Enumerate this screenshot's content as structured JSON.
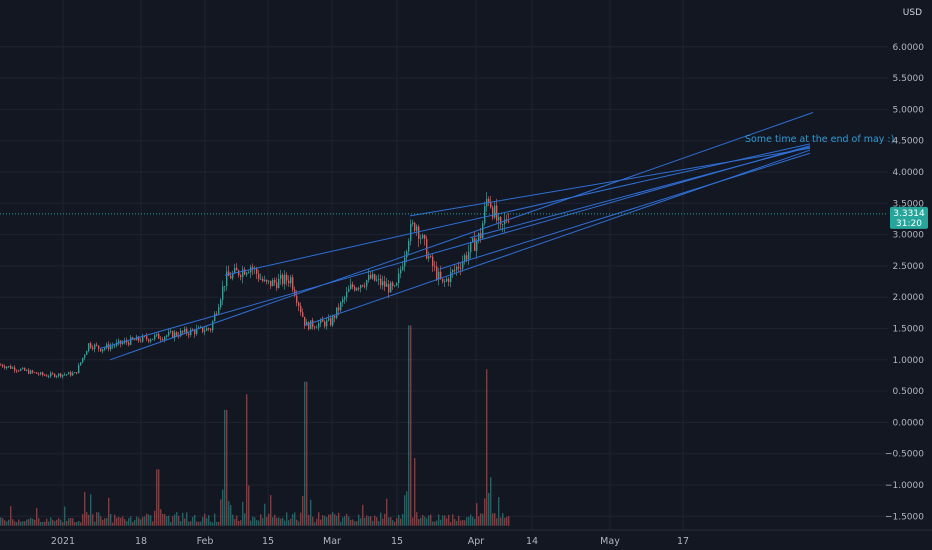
{
  "currency": "USD",
  "annotation": "Some time at the end of may :)",
  "price_label": {
    "value": "3.3314",
    "countdown": "31:20"
  },
  "colors": {
    "background": "#131722",
    "grid": "#1f2330",
    "up": "#26a69a",
    "down": "#ef5350",
    "trendline": "#2f6fd6",
    "price_badge": "#26a69a"
  },
  "chart_data": {
    "type": "candlestick",
    "y_axis": {
      "ticks": [
        "6.0000",
        "5.5000",
        "5.0000",
        "4.5000",
        "4.0000",
        "3.5000",
        "3.0000",
        "2.5000",
        "2.0000",
        "1.5000",
        "1.0000",
        "0.5000",
        "0.0000",
        "−0.5000",
        "−1.0000",
        "−1.5000"
      ],
      "range": [
        -1.65,
        6.5
      ]
    },
    "x_axis": {
      "ticks": [
        "2021",
        "18",
        "Feb",
        "15",
        "Mar",
        "15",
        "Apr",
        "14",
        "May",
        "17"
      ]
    },
    "last_price": 3.3314,
    "price_path": [
      [
        0,
        0.92
      ],
      [
        30,
        0.8
      ],
      [
        45,
        0.75
      ],
      [
        75,
        0.78
      ],
      [
        88,
        1.25
      ],
      [
        100,
        1.18
      ],
      [
        130,
        1.3
      ],
      [
        170,
        1.4
      ],
      [
        210,
        1.5
      ],
      [
        225,
        2.3
      ],
      [
        250,
        2.5
      ],
      [
        265,
        2.2
      ],
      [
        290,
        2.3
      ],
      [
        305,
        1.55
      ],
      [
        330,
        1.6
      ],
      [
        350,
        2.15
      ],
      [
        370,
        2.3
      ],
      [
        395,
        2.1
      ],
      [
        408,
        3.0
      ],
      [
        415,
        3.2
      ],
      [
        430,
        2.55
      ],
      [
        442,
        2.2
      ],
      [
        460,
        2.55
      ],
      [
        480,
        3.0
      ],
      [
        487,
        3.65
      ],
      [
        500,
        3.05
      ],
      [
        508,
        3.33
      ]
    ],
    "volume_spikes": [
      [
        90,
        0.5
      ],
      [
        157,
        0.9
      ],
      [
        225,
        1.85
      ],
      [
        246,
        2.1
      ],
      [
        305,
        2.3
      ],
      [
        409,
        3.2
      ],
      [
        486,
        2.5
      ]
    ],
    "trend_lines": [
      [
        [
          110,
          1.0
        ],
        [
          813,
          4.95
        ]
      ],
      [
        [
          100,
          1.18
        ],
        [
          810,
          4.42
        ]
      ],
      [
        [
          305,
          1.55
        ],
        [
          810,
          4.35
        ]
      ],
      [
        [
          225,
          2.35
        ],
        [
          810,
          4.45
        ]
      ],
      [
        [
          410,
          3.3
        ],
        [
          810,
          4.38
        ]
      ],
      [
        [
          440,
          2.45
        ],
        [
          810,
          4.3
        ]
      ],
      [
        [
          470,
          2.95
        ],
        [
          810,
          4.4
        ]
      ]
    ]
  }
}
